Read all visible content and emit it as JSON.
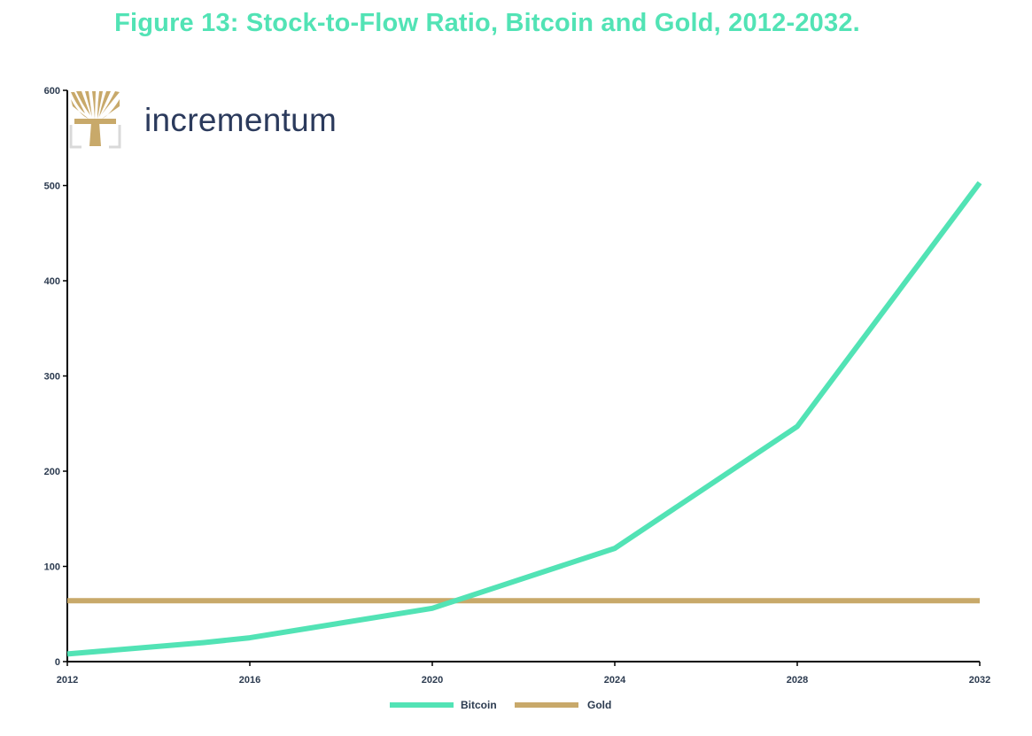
{
  "title": "Figure 13: Stock-to-Flow Ratio, Bitcoin and Gold, 2012-2032.",
  "logo": {
    "text": "incrementum",
    "icon": "tree-logo-icon"
  },
  "colors": {
    "bitcoin": "#52e3b5",
    "gold": "#c8a96a",
    "axis": "#000000",
    "title": "#52e3b5",
    "logo_text": "#2b3a5c",
    "logo_gold": "#c8a96a"
  },
  "chart_data": {
    "type": "line",
    "title": "Figure 13: Stock-to-Flow Ratio, Bitcoin and Gold, 2012-2032.",
    "xlabel": "",
    "ylabel": "",
    "xlim": [
      2012,
      2032
    ],
    "ylim": [
      0,
      600
    ],
    "x_ticks": [
      "2012",
      "2016",
      "2020",
      "2024",
      "2028",
      "2032"
    ],
    "y_ticks": [
      "0",
      "100",
      "200",
      "300",
      "400",
      "500",
      "600"
    ],
    "grid": false,
    "legend_position": "bottom-center",
    "series": [
      {
        "name": "Bitcoin",
        "color": "#52e3b5",
        "x": [
          2012,
          2015,
          2016,
          2020,
          2024,
          2028,
          2032
        ],
        "y": [
          8,
          20,
          25,
          56,
          119,
          247,
          503
        ]
      },
      {
        "name": "Gold",
        "color": "#c8a96a",
        "x": [
          2012,
          2032
        ],
        "y": [
          64,
          64
        ]
      }
    ]
  }
}
